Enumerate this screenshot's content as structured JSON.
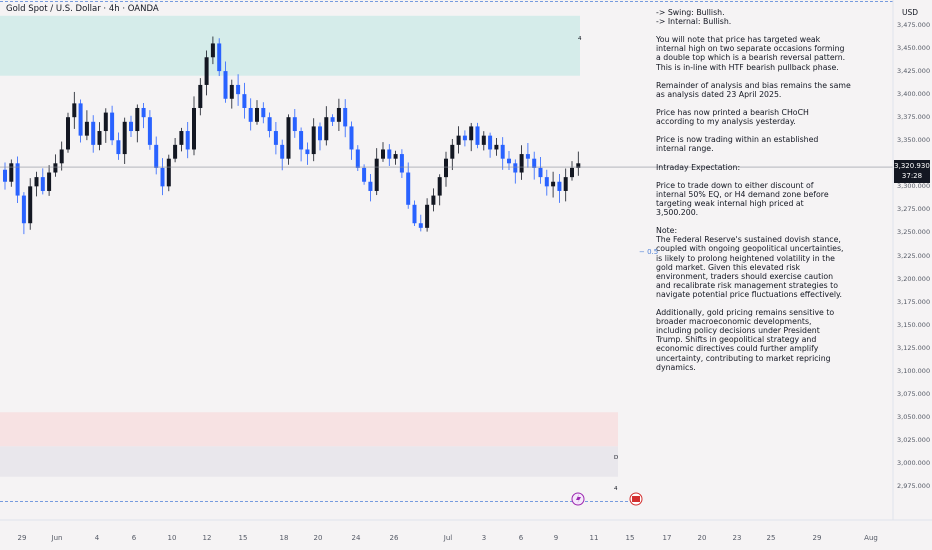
{
  "header": {
    "title": "Gold Spot / U.S. Dollar · 4h · OANDA"
  },
  "price_axis": {
    "currency": "USD",
    "ticks": [
      "3,475.000",
      "3,450.000",
      "3,425.000",
      "3,400.000",
      "3,375.000",
      "3,350.000",
      "3,325.000",
      "3,300.000",
      "3,275.000",
      "3,250.000",
      "3,225.000",
      "3,200.000",
      "3,175.000",
      "3,150.000",
      "3,125.000",
      "3,100.000",
      "3,075.000",
      "3,050.000",
      "3,025.000",
      "3,000.000",
      "2,975.000"
    ],
    "current_price": "3,320.930",
    "countdown": "37:28"
  },
  "time_axis": {
    "ticks": [
      "29",
      "Jun",
      "4",
      "6",
      "10",
      "12",
      "15",
      "18",
      "20",
      "24",
      "26",
      "Jul",
      "3",
      "6",
      "9",
      "11",
      "15",
      "17",
      "20",
      "23",
      "25",
      "29",
      "Aug"
    ]
  },
  "annotations": {
    "level_label": "− 0.5",
    "zone_mark_top": "4",
    "zone_mark_d": "D",
    "zone_mark_bottom": "4"
  },
  "notes": [
    "-> Swing:  Bullish.",
    "-> Internal:  Bullish.",
    "",
    "You will note that price has targeted weak",
    "internal high on two separate occasions forming",
    "a double top which is a bearish reversal pattern.",
    "This is in-line with HTF bearish pullback phase.",
    "",
    "Remainder of analysis and bias remains the same",
    "as analysis dated 23 April 2025.",
    "",
    "Price has now printed a bearish CHoCH",
    "according to my analysis yesterday.",
    "",
    "Price is now trading within an established",
    "internal range.",
    "",
    "Intraday Expectation:",
    "",
    "Price to trade down to either discount of",
    "internal 50% EQ, or H4 demand zone before",
    "targeting weak internal high priced at",
    "3,500.200.",
    "",
    "Note:",
    "The Federal Reserve's sustained dovish stance,",
    "coupled with ongoing geopolitical uncertainties,",
    "is likely to prolong heightened volatility in the",
    "gold market. Given this elevated risk",
    "environment, traders should exercise caution",
    "and recalibrate risk management strategies to",
    "navigate potential price fluctuations effectively.",
    "",
    "Additionally, gold pricing remains sensitive to",
    "broader macroeconomic developments,",
    "including policy decisions under President",
    "Trump. Shifts in geopolitical strategy and",
    "economic directives could further amplify",
    "uncertainty, contributing to market repricing",
    "dynamics."
  ],
  "colors": {
    "bull": "#131722",
    "bear": "#2962ff",
    "supply_zone": "#d5ecea",
    "demand_zone": "#f7e2e3",
    "lower_zone": "#e9e7ec",
    "dashed_line": "#4d7fd6"
  },
  "chart_data": {
    "type": "candlestick",
    "symbol": "Gold Spot / U.S. Dollar",
    "timeframe": "4h",
    "exchange": "OANDA",
    "y_range": [
      2960,
      3485
    ],
    "x_labels": [
      "29",
      "Jun",
      "4",
      "6",
      "10",
      "12",
      "15",
      "18",
      "20",
      "24",
      "26",
      "Jul",
      "3",
      "6",
      "9"
    ],
    "current_price": 3320.93,
    "zones": [
      {
        "from": 3420,
        "to": 3485
      },
      {
        "from": 3018,
        "to": 3055
      },
      {
        "from": 2985,
        "to": 3018
      }
    ],
    "close_path": [
      3318,
      3305,
      3325,
      3290,
      3260,
      3300,
      3310,
      3295,
      3315,
      3325,
      3340,
      3375,
      3390,
      3355,
      3370,
      3345,
      3360,
      3380,
      3350,
      3335,
      3370,
      3360,
      3385,
      3375,
      3345,
      3320,
      3300,
      3330,
      3345,
      3360,
      3340,
      3385,
      3410,
      3440,
      3455,
      3425,
      3395,
      3410,
      3400,
      3385,
      3370,
      3385,
      3375,
      3360,
      3345,
      3330,
      3375,
      3360,
      3340,
      3335,
      3365,
      3350,
      3375,
      3370,
      3385,
      3365,
      3340,
      3320,
      3305,
      3295,
      3330,
      3340,
      3330,
      3335,
      3315,
      3280,
      3260,
      3255,
      3280,
      3290,
      3310,
      3330,
      3345,
      3355,
      3350,
      3365,
      3345,
      3355,
      3340,
      3345,
      3330,
      3325,
      3315,
      3335,
      3330,
      3320,
      3310,
      3300,
      3305,
      3295,
      3310,
      3320,
      3325
    ]
  }
}
